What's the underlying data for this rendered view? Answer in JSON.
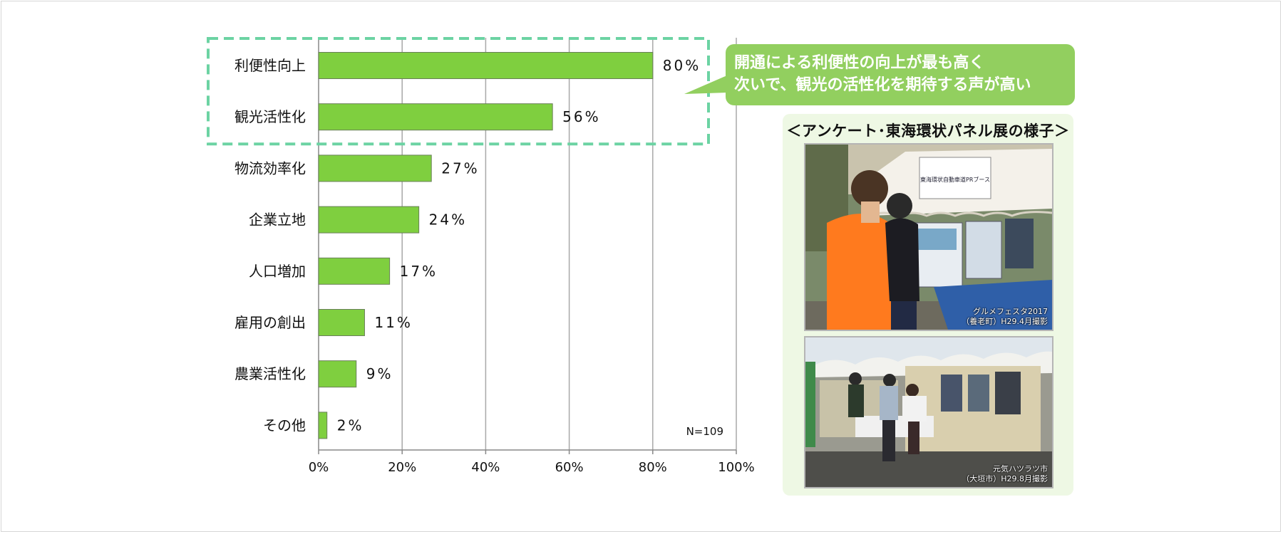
{
  "chart_data": {
    "type": "bar",
    "orientation": "horizontal",
    "categories": [
      "利便性向上",
      "観光活性化",
      "物流効率化",
      "企業立地",
      "人口増加",
      "雇用の創出",
      "農業活性化",
      "その他"
    ],
    "values": [
      80,
      56,
      27,
      24,
      17,
      11,
      9,
      2
    ],
    "value_labels": [
      "80%",
      "56%",
      "27%",
      "24%",
      "17%",
      "11%",
      "9%",
      "2%"
    ],
    "xlim": [
      0,
      100
    ],
    "xticks": [
      "0%",
      "20%",
      "40%",
      "60%",
      "80%",
      "100%"
    ],
    "grid": true,
    "bar_color": "#7fcf3f",
    "highlight_color": "#6cd3a3",
    "highlighted_categories": [
      "利便性向上",
      "観光活性化"
    ],
    "note": "N=109"
  },
  "callout": {
    "line1": "開通による利便性の向上が最も高く",
    "line2": "次いで、観光の活性化を期待する声が高い",
    "color": "#92cf5f"
  },
  "panel": {
    "title": "＜アンケート･東海環状パネル展の様子＞",
    "photos": [
      {
        "icon": "photo-booth-survey",
        "caption_line1": "グルメフェスタ2017",
        "caption_line2": "（養老町）H29.4月撮影",
        "sign": "東海環状自動車道PRブース"
      },
      {
        "icon": "photo-panel-exhibition",
        "caption_line1": "元気ハツラツ市",
        "caption_line2": "（大垣市）H29.8月撮影"
      }
    ]
  }
}
